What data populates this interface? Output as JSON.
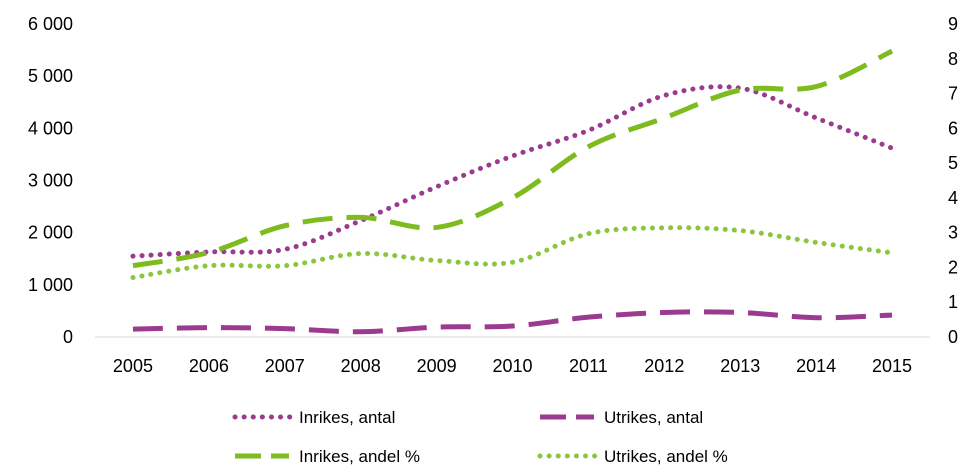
{
  "chart_data": {
    "type": "line",
    "categories": [
      "2005",
      "2006",
      "2007",
      "2008",
      "2009",
      "2010",
      "2011",
      "2012",
      "2013",
      "2014",
      "2015"
    ],
    "y_left": {
      "min": 0,
      "max": 6000,
      "step": 1000,
      "tick_labels": [
        "0",
        "1 000",
        "2 000",
        "3 000",
        "4 000",
        "5 000",
        "6 000"
      ]
    },
    "y_right": {
      "min": 0,
      "max": 9,
      "step": 1,
      "tick_labels": [
        "0",
        "1",
        "2",
        "3",
        "4",
        "5",
        "6",
        "7",
        "8",
        "9"
      ]
    },
    "grid": false,
    "legend_position": "bottom",
    "series": [
      {
        "name": "Inrikes, antal",
        "axis": "left",
        "style": "dotted",
        "color": "#9b3b8f",
        "values": [
          1550,
          1630,
          1680,
          2230,
          2880,
          3470,
          3960,
          4630,
          4770,
          4200,
          3620
        ]
      },
      {
        "name": "Utrikes, antal",
        "axis": "left",
        "style": "dashed",
        "color": "#9b3b8f",
        "values": [
          150,
          180,
          160,
          100,
          190,
          210,
          380,
          470,
          470,
          370,
          420
        ]
      },
      {
        "name": "Inrikes, andel %",
        "axis": "right",
        "style": "dashed",
        "color": "#7dbb1f",
        "values": [
          2.05,
          2.43,
          3.2,
          3.44,
          3.15,
          4.0,
          5.47,
          6.3,
          7.1,
          7.2,
          8.22
        ]
      },
      {
        "name": "Utrikes, andel %",
        "axis": "right",
        "style": "dotted",
        "color": "#8cc63f",
        "values": [
          1.71,
          2.05,
          2.05,
          2.4,
          2.2,
          2.15,
          2.97,
          3.14,
          3.06,
          2.72,
          2.42
        ]
      }
    ]
  }
}
